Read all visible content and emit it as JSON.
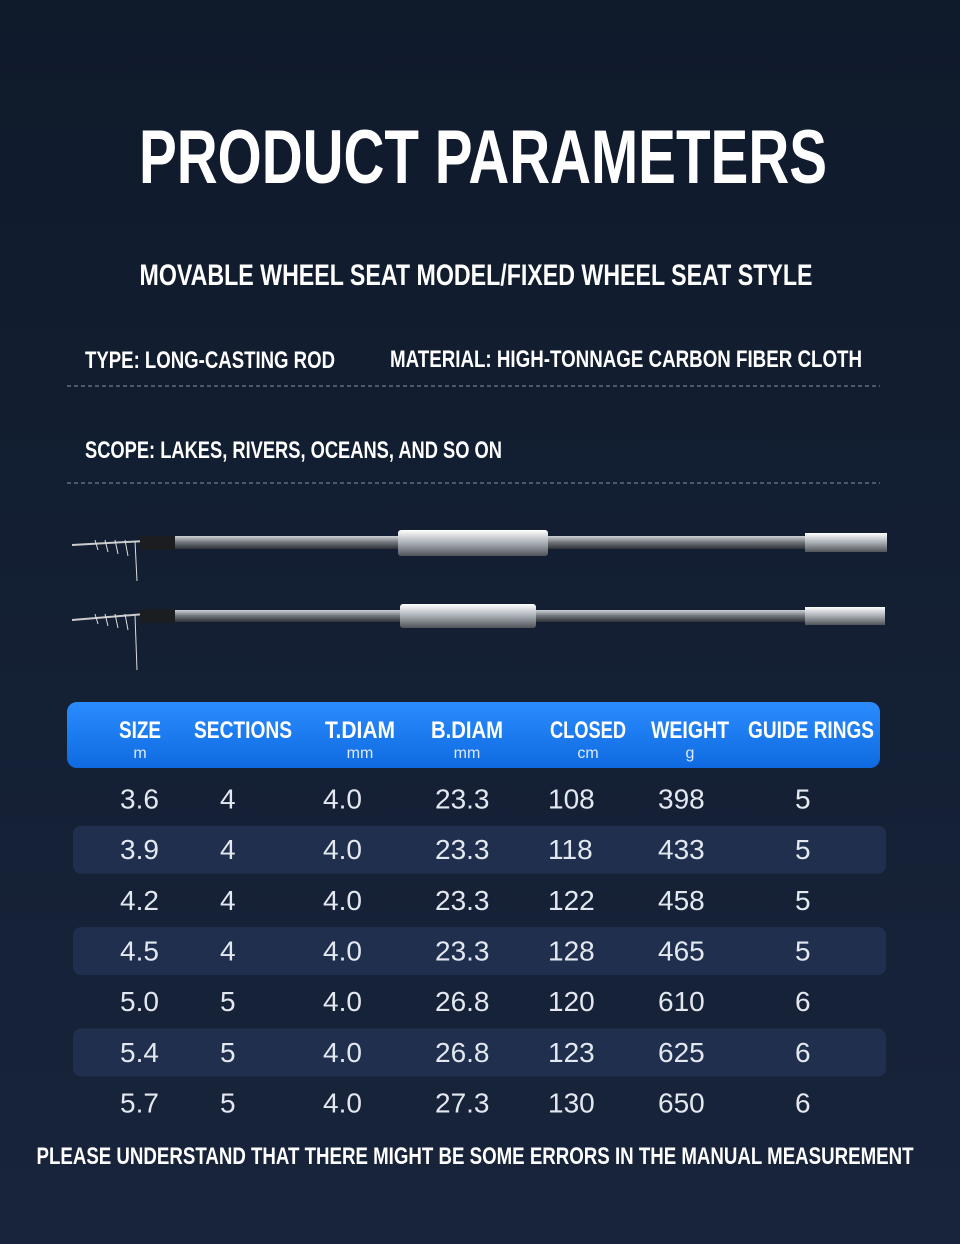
{
  "header": {
    "title": "PRODUCT PARAMETERS",
    "subtitle": "MOVABLE WHEEL SEAT MODEL/FIXED WHEEL SEAT STYLE"
  },
  "specs": {
    "type": "TYPE: LONG-CASTING ROD",
    "material": "MATERIAL: HIGH-TONNAGE CARBON FIBER CLOTH",
    "scope": "SCOPE: LAKES, RIVERS, OCEANS, AND SO ON"
  },
  "table": {
    "columns": [
      {
        "name": "SIZE",
        "unit": "m"
      },
      {
        "name": "SECTIONS"
      },
      {
        "name": "T.DIAM",
        "unit": "mm"
      },
      {
        "name": "B.DIAM",
        "unit": "mm"
      },
      {
        "name": "CLOSED",
        "unit": "cm"
      },
      {
        "name": "WEIGHT",
        "unit": "g"
      },
      {
        "name": "GUIDE RINGS"
      }
    ],
    "rows": [
      [
        "3.6",
        "4",
        "4.0",
        "23.3",
        "108",
        "398",
        "5"
      ],
      [
        "3.9",
        "4",
        "4.0",
        "23.3",
        "118",
        "433",
        "5"
      ],
      [
        "4.2",
        "4",
        "4.0",
        "23.3",
        "122",
        "458",
        "5"
      ],
      [
        "4.5",
        "4",
        "4.0",
        "23.3",
        "128",
        "465",
        "5"
      ],
      [
        "5.0",
        "5",
        "4.0",
        "26.8",
        "120",
        "610",
        "6"
      ],
      [
        "5.4",
        "5",
        "4.0",
        "26.8",
        "123",
        "625",
        "6"
      ],
      [
        "5.7",
        "5",
        "4.0",
        "27.3",
        "130",
        "650",
        "6"
      ]
    ]
  },
  "footer": {
    "note": "PLEASE UNDERSTAND THAT THERE MIGHT BE SOME ERRORS IN THE MANUAL MEASUREMENT"
  }
}
